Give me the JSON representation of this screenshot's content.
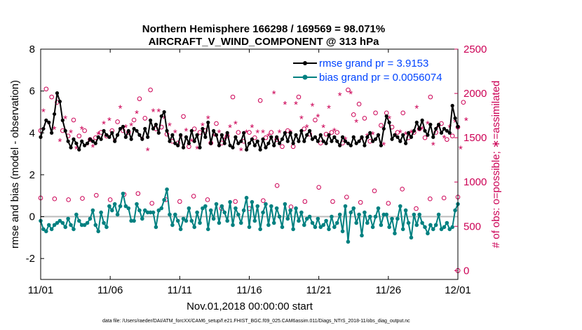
{
  "chart_data": {
    "type": "line",
    "title_line1": "Northern Hemisphere 166298 / 169569 = 98.071%",
    "title_line2": "AIRCRAFT_V_WIND_COMPONENT @ 313 hPa",
    "xlabel": "Nov.01,2018 00:00:00 start",
    "ylabel_left": "rmse and bias (model - observation)",
    "ylabel_right": "# of obs: o=possible; ∗=assimilated",
    "x_tick_labels": [
      "11/01",
      "11/06",
      "11/11",
      "11/16",
      "11/21",
      "11/26",
      "12/01"
    ],
    "x_tick_days": [
      0,
      5,
      10,
      15,
      20,
      25,
      30
    ],
    "xlim": [
      0,
      30
    ],
    "ylim_left": [
      -3,
      8
    ],
    "y_ticks_left": [
      -2,
      0,
      2,
      4,
      6,
      8
    ],
    "y_tick_labels_left": [
      "-2",
      "0",
      "2",
      "4",
      "6",
      "8"
    ],
    "ylim_right": [
      -100,
      2500
    ],
    "y_ticks_right": [
      0,
      500,
      1000,
      1500,
      2000,
      2500
    ],
    "y_tick_labels_right": [
      "0",
      "500",
      "1000",
      "1500",
      "2000",
      "2500"
    ],
    "footer": "data file: /Users/raeder/DAI/ATM_forcXX/CAM6_setup/f.e21.FHIST_BGC.f09_025.CAM6assim.011/Diags_NTrS_2018-11/obs_diag_output.nc",
    "colors": {
      "rmse": "#000000",
      "bias": "#008080",
      "obs": "#cc0055",
      "zero": "#bbbbbb",
      "legend_text": "#0044ff"
    },
    "series": [
      {
        "name": "rmse grand pr = 3.9153",
        "color": "#000000",
        "marker": "star",
        "values": [
          3.8,
          4.2,
          4.6,
          4.5,
          4.0,
          4.9,
          5.9,
          5.5,
          4.6,
          4.1,
          3.6,
          3.3,
          3.7,
          3.5,
          3.2,
          3.6,
          3.4,
          3.5,
          3.7,
          3.6,
          3.5,
          3.8,
          3.7,
          4.1,
          3.9,
          3.8,
          4.0,
          3.6,
          3.9,
          4.2,
          4.3,
          3.8,
          4.1,
          3.7,
          4.2,
          4.1,
          3.9,
          3.7,
          4.2,
          3.8,
          4.6,
          4.2,
          4.4,
          4.0,
          4.8,
          5.0,
          4.1,
          3.6,
          3.9,
          3.5,
          3.4,
          3.9,
          3.3,
          3.8,
          3.5,
          4.1,
          3.6,
          3.9,
          3.3,
          4.2,
          3.8,
          4.5,
          3.5,
          4.1,
          3.9,
          3.4,
          3.9,
          3.5,
          4.0,
          3.4,
          3.3,
          3.8,
          3.5,
          3.6,
          4.0,
          3.2,
          3.5,
          3.7,
          3.4,
          3.6,
          3.2,
          3.7,
          3.3,
          3.5,
          3.8,
          3.4,
          3.8,
          3.5,
          3.7,
          4.0,
          3.6,
          4.0,
          3.5,
          3.9,
          3.6,
          4.1,
          3.6,
          3.9,
          4.1,
          3.7,
          3.8,
          3.6,
          3.9,
          3.6,
          3.5,
          3.9,
          3.6,
          3.8,
          3.6,
          3.4,
          3.8,
          3.6,
          3.5,
          3.4,
          3.8,
          3.5,
          3.6,
          3.8,
          3.4,
          3.8,
          4.0,
          3.6,
          3.7,
          3.9,
          3.4,
          4.2,
          4.8,
          4.5,
          3.7,
          3.9,
          3.8,
          3.6,
          3.9,
          3.5,
          4.0,
          3.8,
          4.1,
          4.5,
          4.2,
          4.6,
          4.1,
          3.9,
          4.4,
          3.8,
          4.2,
          4.4,
          4.0,
          4.2,
          4.1,
          4.0,
          5.3,
          4.7,
          4.3
        ]
      },
      {
        "name": "bias grand pr = 0.0056074",
        "color": "#008080",
        "marker": "circle",
        "values": [
          -0.2,
          -0.6,
          -0.7,
          -0.4,
          -0.6,
          -0.4,
          -0.3,
          -0.2,
          -0.3,
          -0.5,
          -0.1,
          -0.4,
          -0.6,
          0.1,
          -0.2,
          -0.4,
          -0.4,
          -0.3,
          -0.1,
          0.3,
          -0.4,
          -0.7,
          0.2,
          -0.3,
          -0.5,
          0.5,
          0.3,
          0.6,
          0.1,
          0.5,
          1.1,
          0.5,
          0.4,
          -0.2,
          -0.2,
          0.6,
          0.3,
          -0.1,
          0.3,
          0.2,
          0.2,
          0.2,
          -0.5,
          0.3,
          0.4,
          0.8,
          1.3,
          0.1,
          -0.4,
          0.1,
          -0.2,
          -0.6,
          -0.1,
          -0.2,
          0.4,
          -0.2,
          -0.5,
          0.2,
          -0.3,
          0.4,
          0.5,
          -0.6,
          0.3,
          -0.1,
          0.6,
          -0.3,
          0.5,
          0.2,
          -0.2,
          0.7,
          -0.4,
          0.4,
          0.1,
          -0.3,
          0.3,
          0.9,
          -0.5,
          0.7,
          -0.2,
          0.5,
          -0.6,
          0.2,
          0.6,
          -0.4,
          0.5,
          -0.3,
          0.4,
          0.0,
          -0.5,
          0.6,
          -0.1,
          0.3,
          -0.6,
          0.4,
          -0.2,
          0.2,
          -0.4,
          -0.1,
          0.0,
          -0.3,
          -0.5,
          -0.1,
          -0.5,
          -0.4,
          -0.2,
          -0.6,
          0.0,
          -0.5,
          -0.3,
          0.1,
          -0.7,
          0.5,
          -1.2,
          0.2,
          0.4,
          -0.3,
          0.1,
          -0.9,
          0.2,
          -0.3,
          0.0,
          -0.5,
          0.0,
          0.4,
          -0.4,
          0.1,
          0.1,
          -0.5,
          -0.1,
          -0.8,
          -0.1,
          0.5,
          -0.6,
          0.3,
          -0.3,
          -1.0,
          0.1,
          -0.4,
          0.1,
          -0.3,
          -0.5,
          -0.8,
          -0.4,
          -0.6,
          -0.4,
          0.1,
          -0.6,
          -0.5,
          -0.3,
          -0.6,
          -0.5,
          0.3,
          0.6
        ]
      },
      {
        "name": "possible",
        "color": "#cc0055",
        "marker": "o",
        "values": [
          1580,
          1860,
          2050,
          1720,
          1960,
          1660,
          1900,
          1500,
          1580,
          1780,
          1520,
          1600,
          1700,
          1420,
          1520,
          1640,
          1580,
          1460,
          1480,
          1440,
          1500,
          1580,
          1560,
          1720,
          1520,
          1760,
          1580,
          1500,
          1680,
          1900,
          1580,
          1660,
          1560,
          1680,
          1700,
          1840,
          1940,
          1520,
          1720,
          1400,
          2040,
          1860,
          1600,
          1860,
          1620,
          1760,
          1540,
          1680,
          1460,
          1600,
          1440,
          1540,
          1740,
          1620,
          1400,
          1500,
          1600,
          1420,
          1560,
          1680,
          1580,
          1760,
          1440,
          1560,
          1660,
          1600,
          1440,
          1520,
          1520,
          1660,
          1960,
          1700,
          1560,
          1400,
          1460,
          1600,
          1560,
          1660,
          1500,
          1600,
          1920,
          1600,
          1500,
          1560,
          1560,
          2060,
          1480,
          1600,
          1400,
          1940,
          1580,
          1600,
          1400,
          1940,
          1960,
          1760,
          1600,
          1660,
          1540,
          1920,
          1700,
          1780,
          1440,
          1660,
          1540,
          1900,
          1560,
          1620,
          1560,
          2040,
          1440,
          1520,
          2040,
          2060,
          1760,
          1720,
          1880,
          1520,
          1720,
          1560,
          1460,
          1580,
          1780,
          1560,
          1640,
          1460,
          1780,
          1760,
          1620,
          1560,
          1560,
          1600,
          1780,
          1580,
          1500,
          1600,
          1560,
          1900,
          1600,
          1640,
          1500,
          1700,
          1960,
          1460,
          1560,
          1660,
          1660,
          1540,
          1480,
          1660,
          1520,
          1720,
          1620,
          1420,
          1900,
          1740
        ]
      },
      {
        "name": "assimilated",
        "color": "#cc0055",
        "marker": "asterisk",
        "values": [
          1540,
          1800,
          1960,
          1660,
          1880,
          1600,
          1820,
          1460,
          1540,
          1720,
          1480,
          1560,
          1640,
          1380,
          1480,
          1600,
          1540,
          1420,
          1440,
          1400,
          1460,
          1540,
          1520,
          1660,
          1480,
          1700,
          1540,
          1460,
          1640,
          1840,
          1540,
          1620,
          1520,
          1640,
          1660,
          1780,
          1880,
          1480,
          1680,
          1360,
          1980,
          1800,
          1560,
          1800,
          1580,
          1720,
          1500,
          1640,
          1420,
          1560,
          1400,
          1500,
          1700,
          1580,
          1360,
          1460,
          1560,
          1380,
          1520,
          1640,
          1540,
          1720,
          1400,
          1520,
          1620,
          1560,
          1400,
          1480,
          1480,
          1620,
          1900,
          1660,
          1520,
          1360,
          1420,
          1560,
          1520,
          1620,
          1460,
          1560,
          1860,
          1560,
          1460,
          1520,
          1520,
          2000,
          1440,
          1560,
          1360,
          1880,
          1540,
          1560,
          1360,
          1880,
          1900,
          1720,
          1560,
          1620,
          1500,
          1860,
          1660,
          1740,
          1400,
          1620,
          1500,
          1840,
          1520,
          1580,
          1520,
          1980,
          1400,
          1480,
          1980,
          2000,
          1720,
          1680,
          1820,
          1480,
          1680,
          1520,
          1420,
          1540,
          1740,
          1520,
          1600,
          1420,
          1740,
          1720,
          1580,
          1520,
          1520,
          1560,
          1740,
          1540,
          1460,
          1560,
          1520,
          1840,
          1560,
          1600,
          1460,
          1660,
          1900,
          1420,
          1520,
          1620,
          1620,
          1500,
          1440,
          1620,
          1480,
          1680,
          1580,
          1380,
          1840,
          1700
        ]
      },
      {
        "name": "possible-low",
        "color": "#cc0055",
        "marker": "o",
        "days": [
          0.0,
          1.0,
          2.0,
          3.0,
          4.0,
          5.0,
          6.0,
          7.0,
          8.0,
          9.0,
          10.0,
          11.0,
          12.0,
          13.0,
          14.0,
          15.0,
          16.0,
          17.0,
          18.0,
          19.0,
          20.0,
          21.0,
          22.0,
          23.0,
          24.0,
          25.0,
          26.0,
          27.0,
          28.0,
          29.0,
          30.0
        ],
        "values": [
          820,
          810,
          800,
          815,
          850,
          800,
          860,
          870,
          760,
          800,
          780,
          840,
          800,
          700,
          780,
          700,
          790,
          960,
          720,
          780,
          940,
          780,
          830,
          770,
          900,
          760,
          920,
          700,
          810,
          820,
          830
        ]
      }
    ],
    "legend": {
      "rmse_label": "rmse grand pr = 3.9153",
      "bias_label": "bias grand pr = 0.0056074",
      "position": "top-right"
    },
    "end_point": {
      "day": 30,
      "value": 0
    }
  }
}
